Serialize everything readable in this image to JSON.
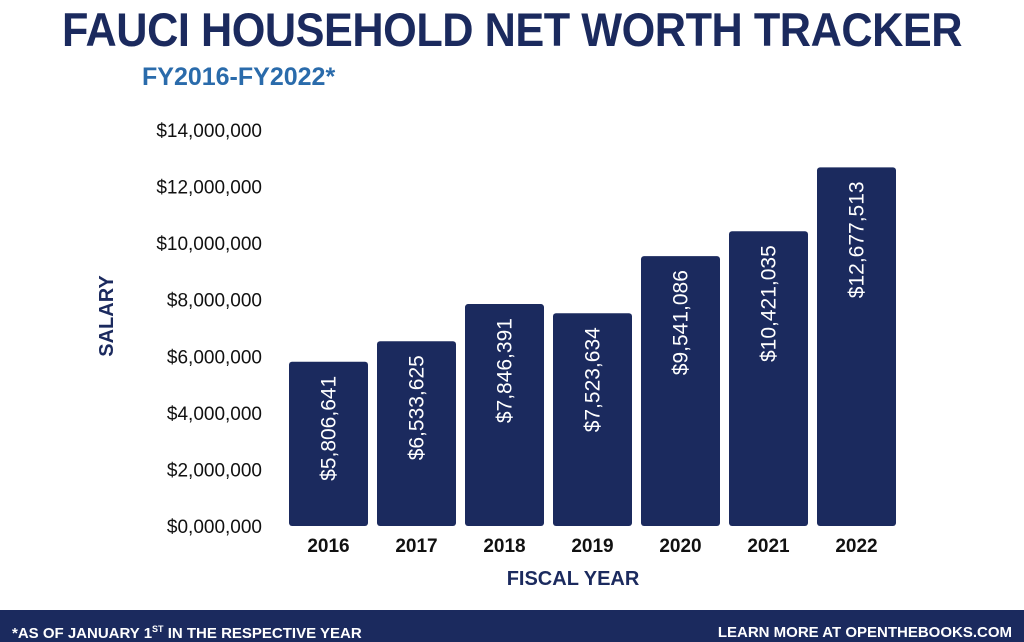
{
  "header": {
    "title": "FAUCI HOUSEHOLD NET WORTH TRACKER",
    "subtitle": "FY2016-FY2022*"
  },
  "chart_data": {
    "type": "bar",
    "title": "FAUCI HOUSEHOLD NET WORTH TRACKER",
    "subtitle": "FY2016-FY2022*",
    "xlabel": "FISCAL YEAR",
    "ylabel": "SALARY",
    "categories": [
      "2016",
      "2017",
      "2018",
      "2019",
      "2020",
      "2021",
      "2022"
    ],
    "values": [
      5806641,
      6533625,
      7846391,
      7523634,
      9541086,
      10421035,
      12677513
    ],
    "value_labels": [
      "$5,806,641",
      "$6,533,625",
      "$7,846,391",
      "$7,523,634",
      "$9,541,086",
      "$10,421,035",
      "$12,677,513"
    ],
    "yticks": [
      0,
      2000000,
      4000000,
      6000000,
      8000000,
      10000000,
      12000000,
      14000000
    ],
    "ytick_labels": [
      "$0,000,000",
      "$2,000,000",
      "$4,000,000",
      "$6,000,000",
      "$8,000,000",
      "$10,000,000",
      "$12,000,000",
      "$14,000,000"
    ],
    "ylim": [
      0,
      14000000
    ],
    "grid": false,
    "bar_color": "#1b2a5e"
  },
  "footer": {
    "note_prefix": "*AS OF JANUARY 1",
    "note_sup": "ST",
    "note_suffix": " IN THE RESPECTIVE YEAR",
    "link": "LEARN MORE AT OPENTHEBOOKS.COM"
  }
}
